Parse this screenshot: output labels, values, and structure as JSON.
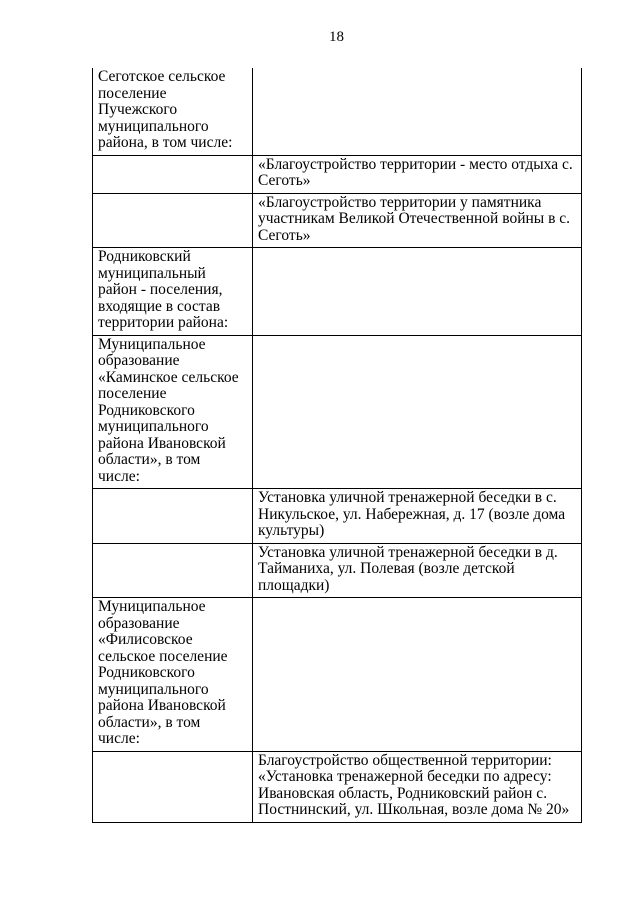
{
  "page": {
    "number": "18"
  },
  "colors": {
    "background": "#ffffff",
    "text": "#000000",
    "table_border": "#000000"
  },
  "table": {
    "rows": [
      {
        "left": "Сеготское сельское поселение Пучежского муниципального района, в том числе:",
        "right": ""
      },
      {
        "left": "",
        "right": "«Благоустройство территории - место отдыха с. Сеготь»"
      },
      {
        "left": "",
        "right": "«Благоустройство территории у памятника участникам Великой Отечественной войны в с. Сеготь»"
      },
      {
        "left": "Родниковский муниципальный район - поселения, входящие в состав территории района:",
        "right": ""
      },
      {
        "left": "Муниципальное образование «Каминское сельское поселение Родниковского муниципального района Ивановской области», в том числе:",
        "right": ""
      },
      {
        "left": "",
        "right": "Установка уличной тренажерной беседки в с. Никульское, ул. Набережная, д. 17 (возле дома культуры)"
      },
      {
        "left": "",
        "right": "Установка уличной тренажерной беседки в д. Тайманиха, ул. Полевая (возле детской площадки)"
      },
      {
        "left": "Муниципальное образование «Филисовское сельское поселение Родниковского муниципального района Ивановской области», в том числе:",
        "right": ""
      },
      {
        "left": "",
        "right": "Благоустройство общественной территории: «Установка тренажерной беседки по адресу: Ивановская область, Родниковский район с. Постнинский, ул. Школьная, возле дома № 20»"
      }
    ]
  }
}
